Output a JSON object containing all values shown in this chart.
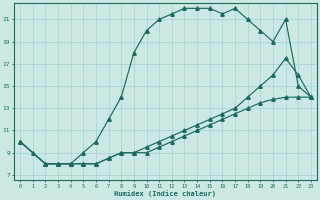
{
  "xlabel": "Humidex (Indice chaleur)",
  "bg_color": "#cce8e4",
  "grid_color": "#aad4d0",
  "line_color": "#1a6b5a",
  "xlim_min": -0.5,
  "xlim_max": 23.5,
  "ylim_min": 6.5,
  "ylim_max": 22.5,
  "xticks": [
    0,
    1,
    2,
    3,
    4,
    5,
    6,
    7,
    8,
    9,
    10,
    11,
    12,
    13,
    14,
    15,
    16,
    17,
    18,
    19,
    20,
    21,
    22,
    23
  ],
  "yticks": [
    7,
    9,
    11,
    13,
    15,
    17,
    19,
    21
  ],
  "curve_top_x": [
    0,
    1,
    2,
    3,
    4,
    5,
    6,
    7,
    8,
    9,
    10,
    11,
    12,
    13,
    14,
    15,
    16,
    17,
    18,
    19,
    20,
    21,
    22,
    23
  ],
  "curve_top_y": [
    10,
    9,
    8,
    8,
    8,
    9,
    10,
    12,
    14,
    18,
    20,
    21,
    21.5,
    22,
    22,
    22,
    21.5,
    22,
    21,
    20,
    19,
    21,
    15,
    14
  ],
  "curve_low1_x": [
    0,
    2,
    3,
    4,
    5,
    6,
    7,
    8,
    9,
    10,
    11,
    12,
    13,
    14,
    15,
    16,
    17,
    18,
    19,
    20,
    21,
    22,
    23
  ],
  "curve_low1_y": [
    10,
    8,
    8,
    8,
    8,
    8,
    8.5,
    9,
    9,
    9,
    9.5,
    10,
    10.5,
    11,
    11.5,
    12,
    12.5,
    13,
    13.5,
    13.8,
    14,
    14,
    14
  ],
  "curve_low2_x": [
    0,
    2,
    3,
    4,
    5,
    6,
    7,
    8,
    9,
    10,
    11,
    12,
    13,
    14,
    15,
    16,
    17,
    18,
    19,
    20,
    21,
    22,
    23
  ],
  "curve_low2_y": [
    10,
    8,
    8,
    8,
    8,
    8,
    8.5,
    9,
    9,
    9.5,
    10,
    10.5,
    11,
    11.5,
    12,
    12.5,
    13,
    14,
    15,
    16,
    17.5,
    16,
    14
  ]
}
